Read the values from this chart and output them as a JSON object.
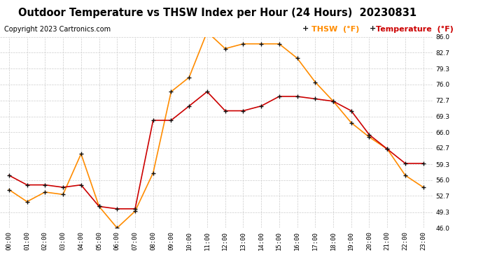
{
  "title": "Outdoor Temperature vs THSW Index per Hour (24 Hours)  20230831",
  "copyright": "Copyright 2023 Cartronics.com",
  "hours": [
    "00:00",
    "01:00",
    "02:00",
    "03:00",
    "04:00",
    "05:00",
    "06:00",
    "07:00",
    "08:00",
    "09:00",
    "10:00",
    "11:00",
    "12:00",
    "13:00",
    "14:00",
    "15:00",
    "16:00",
    "17:00",
    "18:00",
    "19:00",
    "20:00",
    "21:00",
    "22:00",
    "23:00"
  ],
  "thsw": [
    54.0,
    51.5,
    53.5,
    53.0,
    61.5,
    50.5,
    46.0,
    49.5,
    57.5,
    74.5,
    77.5,
    87.0,
    83.5,
    84.5,
    84.5,
    84.5,
    81.5,
    76.5,
    72.5,
    68.0,
    65.0,
    62.5,
    57.0,
    54.5
  ],
  "temperature": [
    57.0,
    55.0,
    55.0,
    54.5,
    55.0,
    50.5,
    50.0,
    50.0,
    68.5,
    68.5,
    71.5,
    74.5,
    70.5,
    70.5,
    71.5,
    73.5,
    73.5,
    73.0,
    72.5,
    70.5,
    65.5,
    62.5,
    59.5,
    59.5
  ],
  "thsw_color": "#FF8C00",
  "temp_color": "#CC0000",
  "marker_color": "#111111",
  "background_color": "#ffffff",
  "grid_color": "#cccccc",
  "title_color": "#000000",
  "copyright_color": "#000000",
  "legend_thsw_color": "#FF8C00",
  "legend_temp_color": "#CC0000",
  "ylim": [
    46.0,
    86.0
  ],
  "yticks": [
    46.0,
    49.3,
    52.7,
    56.0,
    59.3,
    62.7,
    66.0,
    69.3,
    72.7,
    76.0,
    79.3,
    82.7,
    86.0
  ],
  "title_fontsize": 10.5,
  "copyright_fontsize": 7,
  "legend_fontsize": 8,
  "tick_fontsize": 6.5,
  "marker_size": 5.0,
  "linewidth": 1.2
}
